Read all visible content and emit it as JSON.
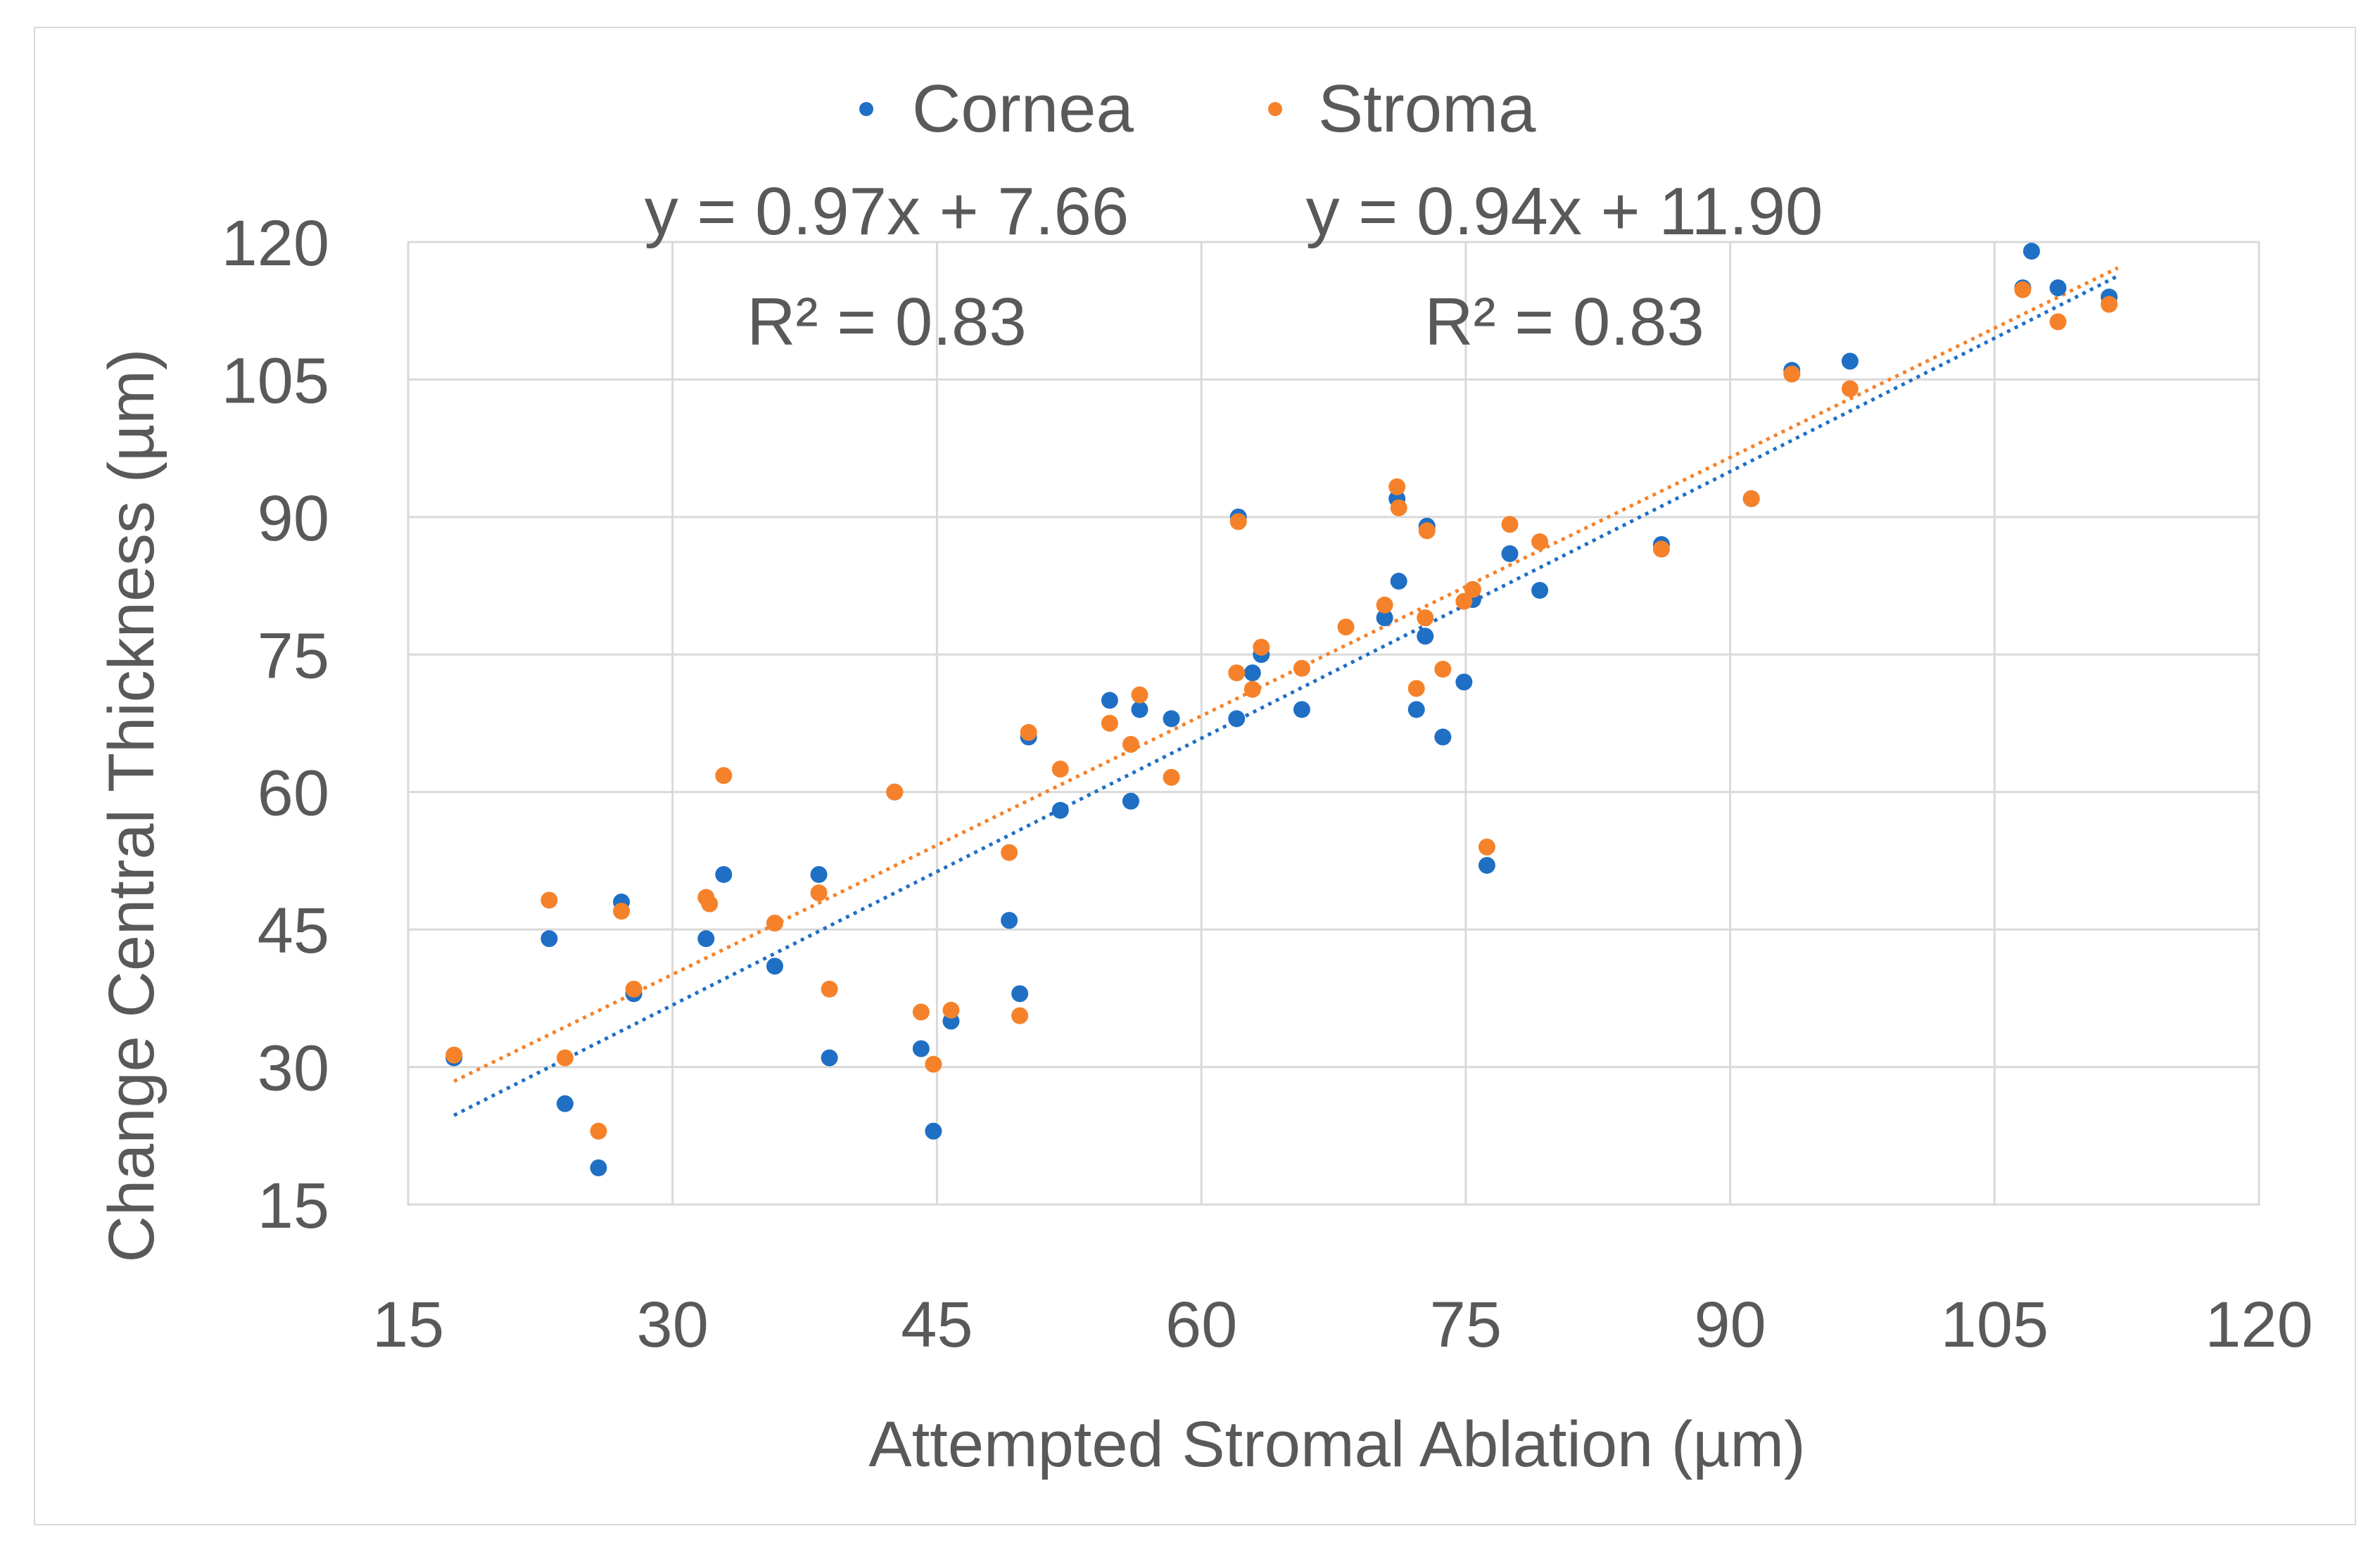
{
  "chart_data": {
    "type": "scatter",
    "title": "",
    "xlabel": "Attempted Stromal Ablation (µm)",
    "ylabel": "Change Central Thickness (µm)",
    "xlim": [
      15,
      120
    ],
    "ylim": [
      15,
      120
    ],
    "x_ticks": [
      "15",
      "30",
      "45",
      "60",
      "75",
      "90",
      "105",
      "120"
    ],
    "y_ticks": [
      "15",
      "30",
      "45",
      "60",
      "75",
      "90",
      "105",
      "120"
    ],
    "grid": true,
    "legend_position": "top",
    "series": [
      {
        "name": "Cornea",
        "color": "#1f6fc5",
        "equation": "y = 0.97x + 7.66",
        "r2_label": "R² = 0.83",
        "trendline": {
          "slope": 0.97,
          "intercept": 7.66,
          "x_range": [
            17.6,
            112
          ]
        },
        "points": [
          [
            17.6,
            31
          ],
          [
            23,
            44
          ],
          [
            23.9,
            26
          ],
          [
            25.8,
            19
          ],
          [
            27.1,
            48
          ],
          [
            27.8,
            38
          ],
          [
            31.9,
            44
          ],
          [
            32.9,
            51
          ],
          [
            35.8,
            41
          ],
          [
            38.3,
            51
          ],
          [
            38.9,
            31
          ],
          [
            42.6,
            60
          ],
          [
            44.1,
            32
          ],
          [
            44.8,
            23
          ],
          [
            45.8,
            35
          ],
          [
            49.1,
            46
          ],
          [
            49.7,
            38
          ],
          [
            50.2,
            66
          ],
          [
            52.0,
            58
          ],
          [
            54.8,
            70
          ],
          [
            56.0,
            59
          ],
          [
            56.5,
            69
          ],
          [
            58.3,
            68
          ],
          [
            62.0,
            68
          ],
          [
            62.1,
            90
          ],
          [
            62.9,
            73
          ],
          [
            63.4,
            75
          ],
          [
            65.7,
            69
          ],
          [
            70.4,
            79
          ],
          [
            71.1,
            92
          ],
          [
            71.2,
            83
          ],
          [
            72.2,
            69
          ],
          [
            72.7,
            77
          ],
          [
            72.8,
            89
          ],
          [
            73.7,
            66
          ],
          [
            74.9,
            72
          ],
          [
            75.4,
            81
          ],
          [
            76.2,
            52
          ],
          [
            77.5,
            86
          ],
          [
            79.2,
            82
          ],
          [
            86.1,
            87
          ],
          [
            91.2,
            92
          ],
          [
            93.5,
            106
          ],
          [
            96.8,
            107
          ],
          [
            106.6,
            115
          ],
          [
            107.1,
            119
          ],
          [
            108.6,
            115
          ],
          [
            111.5,
            114
          ]
        ]
      },
      {
        "name": "Stroma",
        "color": "#f5822a",
        "equation": "y = 0.94x + 11.90",
        "r2_label": "R² = 0.83",
        "trendline": {
          "slope": 0.94,
          "intercept": 11.9,
          "x_range": [
            17.6,
            112
          ]
        },
        "points": [
          [
            17.6,
            31.3
          ],
          [
            23,
            48.2
          ],
          [
            23.9,
            31
          ],
          [
            25.8,
            23
          ],
          [
            27.1,
            47
          ],
          [
            27.8,
            38.5
          ],
          [
            31.9,
            48.5
          ],
          [
            32.1,
            47.8
          ],
          [
            32.9,
            61.8
          ],
          [
            35.8,
            45.7
          ],
          [
            38.3,
            49
          ],
          [
            38.9,
            38.5
          ],
          [
            42.6,
            60
          ],
          [
            44.1,
            36
          ],
          [
            44.8,
            30.3
          ],
          [
            45.8,
            36.2
          ],
          [
            49.1,
            53.4
          ],
          [
            49.7,
            35.6
          ],
          [
            50.2,
            66.5
          ],
          [
            52.0,
            62.5
          ],
          [
            54.8,
            67.5
          ],
          [
            56.0,
            65.2
          ],
          [
            56.5,
            70.6
          ],
          [
            58.3,
            61.6
          ],
          [
            62.0,
            73
          ],
          [
            62.1,
            89.5
          ],
          [
            62.9,
            71.2
          ],
          [
            63.4,
            75.8
          ],
          [
            65.7,
            73.5
          ],
          [
            68.2,
            78
          ],
          [
            70.4,
            80.4
          ],
          [
            71.1,
            93.3
          ],
          [
            71.2,
            91
          ],
          [
            72.2,
            71.3
          ],
          [
            72.7,
            79
          ],
          [
            72.8,
            88.5
          ],
          [
            73.7,
            73.4
          ],
          [
            74.9,
            80.8
          ],
          [
            75.4,
            82.1
          ],
          [
            76.2,
            54
          ],
          [
            77.5,
            89.2
          ],
          [
            79.2,
            87.3
          ],
          [
            86.1,
            86.5
          ],
          [
            91.2,
            92
          ],
          [
            93.5,
            105.6
          ],
          [
            96.8,
            104
          ],
          [
            106.6,
            114.8
          ],
          [
            108.6,
            111.3
          ],
          [
            111.5,
            113.2
          ]
        ]
      }
    ]
  }
}
